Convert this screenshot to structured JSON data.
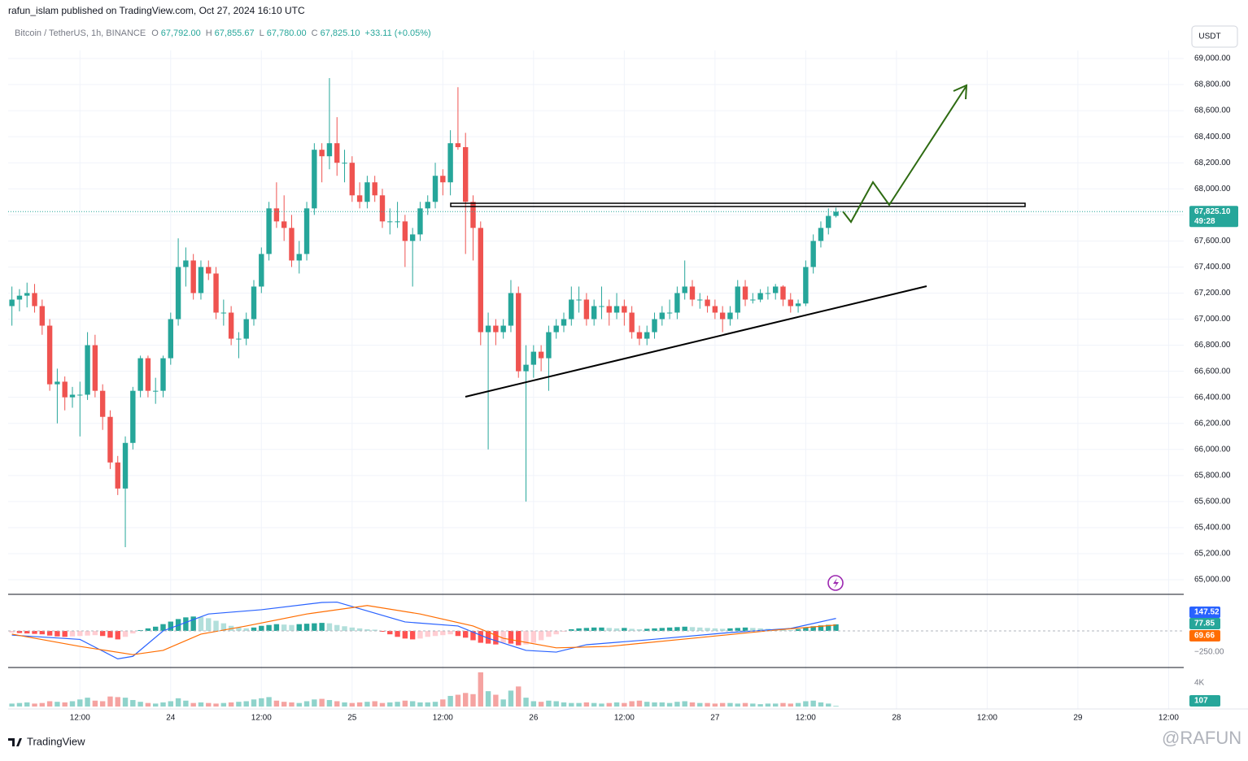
{
  "header": {
    "publisher": "rafun_islam published on TradingView.com, Oct 27, 2024 16:10 UTC",
    "symbol": "Bitcoin / TetherUS, 1h, BINANCE",
    "legend": [
      {
        "label": "O",
        "value": "67,792.00"
      },
      {
        "label": "H",
        "value": "67,855.67"
      },
      {
        "label": "L",
        "value": "67,780.00"
      },
      {
        "label": "C",
        "value": "67,825.10"
      }
    ],
    "change": "+33.11 (+0.05%)",
    "currency": "USDT",
    "brand": "TradingView",
    "watermark": "@RAFUN"
  },
  "chart_data": {
    "type": "candlestick",
    "up_color": "#26a69a",
    "down_color": "#ef5350",
    "grid": true,
    "xlim": [
      -0.5,
      155
    ],
    "xticks": [
      {
        "value": 9,
        "label": "12:00"
      },
      {
        "value": 21,
        "label": "24"
      },
      {
        "value": 33,
        "label": "12:00"
      },
      {
        "value": 45,
        "label": "25"
      },
      {
        "value": 57,
        "label": "12:00"
      },
      {
        "value": 69,
        "label": "26"
      },
      {
        "value": 81,
        "label": "12:00"
      },
      {
        "value": 93,
        "label": "27"
      },
      {
        "value": 105,
        "label": "12:00"
      },
      {
        "value": 117,
        "label": "28"
      },
      {
        "value": 129,
        "label": "12:00"
      },
      {
        "value": 141,
        "label": "29"
      },
      {
        "value": 153,
        "label": "12:00"
      }
    ],
    "ylim": [
      64888,
      69262
    ],
    "yticks": [
      {
        "value": 65000,
        "label": "65,000.00"
      },
      {
        "value": 65200,
        "label": "65,200.00"
      },
      {
        "value": 65400,
        "label": "65,400.00"
      },
      {
        "value": 65600,
        "label": "65,600.00"
      },
      {
        "value": 65800,
        "label": "65,800.00"
      },
      {
        "value": 66000,
        "label": "66,000.00"
      },
      {
        "value": 66200,
        "label": "66,200.00"
      },
      {
        "value": 66400,
        "label": "66,400.00"
      },
      {
        "value": 66600,
        "label": "66,600.00"
      },
      {
        "value": 66800,
        "label": "66,800.00"
      },
      {
        "value": 67000,
        "label": "67,000.00"
      },
      {
        "value": 67200,
        "label": "67,200.00"
      },
      {
        "value": 67400,
        "label": "67,400.00"
      },
      {
        "value": 67600,
        "label": "67,600.00"
      },
      {
        "value": 67800,
        "label": "67,800.00"
      },
      {
        "value": 68000,
        "label": "68,000.00"
      },
      {
        "value": 68200,
        "label": "68,200.00"
      },
      {
        "value": 68400,
        "label": "68,400.00"
      },
      {
        "value": 68600,
        "label": "68,600.00"
      },
      {
        "value": 68800,
        "label": "68,800.00"
      },
      {
        "value": 69000,
        "label": "69,000.00"
      }
    ],
    "last_price": {
      "value": 67825.1,
      "label": "67,825.10"
    },
    "countdown": "49:28",
    "candles": [
      [
        67100,
        67250,
        66950,
        67150
      ],
      [
        67150,
        67230,
        67060,
        67180
      ],
      [
        67180,
        67280,
        67090,
        67200
      ],
      [
        67200,
        67270,
        67050,
        67100
      ],
      [
        67100,
        67150,
        66880,
        66950
      ],
      [
        66950,
        67000,
        66450,
        66500
      ],
      [
        66500,
        66620,
        66200,
        66520
      ],
      [
        66520,
        66560,
        66300,
        66400
      ],
      [
        66400,
        66480,
        66320,
        66420
      ],
      [
        66420,
        66520,
        66100,
        66420
      ],
      [
        66420,
        66900,
        66380,
        66800
      ],
      [
        66800,
        66880,
        66400,
        66450
      ],
      [
        66450,
        66500,
        66150,
        66250
      ],
      [
        66250,
        66300,
        65850,
        65900
      ],
      [
        65900,
        65950,
        65650,
        65700
      ],
      [
        65700,
        66100,
        65250,
        66050
      ],
      [
        66050,
        66480,
        66000,
        66450
      ],
      [
        66450,
        66720,
        66400,
        66700
      ],
      [
        66700,
        66720,
        66400,
        66450
      ],
      [
        66450,
        66550,
        66350,
        66450
      ],
      [
        66450,
        66720,
        66400,
        66700
      ],
      [
        66700,
        67050,
        66650,
        67000
      ],
      [
        67000,
        67620,
        66950,
        67400
      ],
      [
        67400,
        67550,
        67250,
        67450
      ],
      [
        67450,
        67500,
        67150,
        67200
      ],
      [
        67200,
        67450,
        67150,
        67400
      ],
      [
        67400,
        67450,
        67300,
        67350
      ],
      [
        67350,
        67400,
        67000,
        67050
      ],
      [
        67050,
        67150,
        66950,
        67050
      ],
      [
        67050,
        67100,
        66800,
        66850
      ],
      [
        66850,
        66900,
        66700,
        66850
      ],
      [
        66850,
        67050,
        66800,
        67000
      ],
      [
        67000,
        67300,
        66950,
        67250
      ],
      [
        67250,
        67550,
        67200,
        67500
      ],
      [
        67500,
        67900,
        67450,
        67850
      ],
      [
        67850,
        68050,
        67700,
        67750
      ],
      [
        67750,
        67950,
        67600,
        67700
      ],
      [
        67700,
        67800,
        67400,
        67450
      ],
      [
        67450,
        67600,
        67350,
        67500
      ],
      [
        67500,
        67900,
        67450,
        67850
      ],
      [
        67850,
        68350,
        67800,
        68300
      ],
      [
        68300,
        68350,
        68050,
        68250
      ],
      [
        68250,
        68850,
        68150,
        68350
      ],
      [
        68350,
        68550,
        68100,
        68200
      ],
      [
        68200,
        68300,
        68050,
        68200
      ],
      [
        68200,
        68250,
        67900,
        67950
      ],
      [
        67950,
        68050,
        67850,
        67900
      ],
      [
        67900,
        68100,
        67850,
        68050
      ],
      [
        68050,
        68100,
        67900,
        67950
      ],
      [
        67950,
        68000,
        67700,
        67750
      ],
      [
        67750,
        67850,
        67650,
        67750
      ],
      [
        67750,
        67900,
        67700,
        67750
      ],
      [
        67750,
        67800,
        67400,
        67600
      ],
      [
        67600,
        67700,
        67250,
        67650
      ],
      [
        67650,
        67900,
        67600,
        67850
      ],
      [
        67850,
        67950,
        67800,
        67900
      ],
      [
        67900,
        68200,
        67850,
        68100
      ],
      [
        68100,
        68150,
        67950,
        68050
      ],
      [
        68050,
        68450,
        67950,
        68350
      ],
      [
        68350,
        68780,
        68300,
        68320
      ],
      [
        68320,
        68430,
        67500,
        67900
      ],
      [
        67900,
        67950,
        67450,
        67700
      ],
      [
        67700,
        67750,
        66800,
        66900
      ],
      [
        66900,
        67050,
        66000,
        66950
      ],
      [
        66950,
        67000,
        66800,
        66900
      ],
      [
        66900,
        67000,
        66850,
        66950
      ],
      [
        66950,
        67300,
        66900,
        67200
      ],
      [
        67200,
        67250,
        66550,
        66600
      ],
      [
        66600,
        66800,
        65600,
        66650
      ],
      [
        66650,
        66800,
        66550,
        66750
      ],
      [
        66750,
        66800,
        66600,
        66700
      ],
      [
        66700,
        66950,
        66450,
        66900
      ],
      [
        66900,
        67000,
        66850,
        66950
      ],
      [
        66950,
        67050,
        66900,
        67000
      ],
      [
        67000,
        67250,
        66950,
        67150
      ],
      [
        67150,
        67250,
        67050,
        67150
      ],
      [
        67150,
        67200,
        66950,
        67000
      ],
      [
        67000,
        67150,
        66950,
        67100
      ],
      [
        67100,
        67250,
        67000,
        67100
      ],
      [
        67100,
        67150,
        66950,
        67050
      ],
      [
        67050,
        67200,
        67000,
        67100
      ],
      [
        67100,
        67150,
        66950,
        67050
      ],
      [
        67050,
        67100,
        66850,
        66900
      ],
      [
        66900,
        66950,
        66800,
        66850
      ],
      [
        66850,
        66950,
        66800,
        66900
      ],
      [
        66900,
        67050,
        66850,
        67000
      ],
      [
        67000,
        67100,
        66950,
        67050
      ],
      [
        67050,
        67150,
        67000,
        67050
      ],
      [
        67050,
        67250,
        67000,
        67200
      ],
      [
        67200,
        67450,
        67150,
        67250
      ],
      [
        67250,
        67300,
        67100,
        67150
      ],
      [
        67150,
        67200,
        67080,
        67150
      ],
      [
        67150,
        67180,
        67050,
        67100
      ],
      [
        67100,
        67150,
        67000,
        67050
      ],
      [
        67050,
        67100,
        66900,
        67000
      ],
      [
        67000,
        67100,
        66950,
        67050
      ],
      [
        67050,
        67300,
        67000,
        67250
      ],
      [
        67250,
        67300,
        67100,
        67150
      ],
      [
        67150,
        67200,
        67120,
        67150
      ],
      [
        67150,
        67230,
        67130,
        67200
      ],
      [
        67200,
        67250,
        67150,
        67200
      ],
      [
        67200,
        67270,
        67150,
        67250
      ],
      [
        67250,
        67260,
        67100,
        67150
      ],
      [
        67150,
        67200,
        67050,
        67100
      ],
      [
        67100,
        67150,
        67050,
        67120
      ],
      [
        67120,
        67450,
        67100,
        67400
      ],
      [
        67400,
        67650,
        67350,
        67600
      ],
      [
        67600,
        67750,
        67550,
        67700
      ],
      [
        67700,
        67850,
        67650,
        67792
      ],
      [
        67792,
        67855.67,
        67780,
        67825.1
      ]
    ],
    "macd": {
      "ylim": [
        -432,
        432
      ],
      "yticks": [
        {
          "value": -250,
          "label": "−250.00"
        }
      ],
      "histogram": [
        -20,
        -25,
        -30,
        -35,
        -40,
        -55,
        -65,
        -70,
        -65,
        -60,
        -55,
        -50,
        -60,
        -80,
        -100,
        -70,
        -30,
        10,
        30,
        50,
        80,
        110,
        140,
        160,
        170,
        165,
        150,
        120,
        90,
        60,
        40,
        30,
        40,
        60,
        70,
        80,
        75,
        70,
        80,
        85,
        90,
        95,
        90,
        70,
        55,
        40,
        30,
        20,
        15,
        -10,
        -40,
        -70,
        -90,
        -100,
        -90,
        -70,
        -60,
        -50,
        -40,
        -60,
        -80,
        -110,
        -140,
        -150,
        -160,
        -140,
        -150,
        -170,
        -160,
        -140,
        -110,
        -70,
        -40,
        -10,
        20,
        30,
        35,
        40,
        40,
        35,
        30,
        35,
        25,
        20,
        25,
        30,
        35,
        40,
        45,
        50,
        45,
        40,
        35,
        30,
        25,
        30,
        35,
        40,
        35,
        30,
        25,
        20,
        15,
        10,
        20,
        40,
        55,
        65,
        72,
        77.85
      ],
      "hist_colors": [
        "#26a69a",
        "#b2dfdb",
        "#ff5252",
        "#ffcdd2"
      ],
      "series": [
        {
          "color": "#2962ff",
          "x": [
            0,
            9,
            14,
            16,
            20,
            26,
            33,
            41,
            43,
            52,
            59,
            63,
            68,
            72,
            76,
            84,
            95,
            103,
            109
          ],
          "values": [
            -50,
            -100,
            -330,
            -300,
            0,
            200,
            250,
            336,
            340,
            106,
            58,
            -87,
            -230,
            -250,
            -163,
            -106,
            -19,
            29,
            147.52
          ]
        },
        {
          "color": "#ff6d00",
          "x": [
            0,
            9,
            16,
            20,
            25,
            31,
            39,
            47,
            54,
            61,
            65,
            72,
            79,
            90,
            101,
            109
          ],
          "values": [
            -38,
            -183,
            -280,
            -230,
            -38,
            58,
            200,
            300,
            200,
            58,
            -87,
            -200,
            -183,
            -87,
            10,
            69.66
          ]
        }
      ]
    },
    "volume": {
      "ylim": [
        0,
        6480
      ],
      "yticks": [
        {
          "value": 4000,
          "label": "4K"
        }
      ],
      "up_color": "#8fd3cb",
      "down_color": "#f5a3a1",
      "values": [
        500,
        600,
        700,
        500,
        600,
        900,
        800,
        700,
        900,
        1200,
        1500,
        1000,
        900,
        1700,
        1600,
        1500,
        1100,
        800,
        600,
        500,
        700,
        900,
        1400,
        1000,
        600,
        700,
        600,
        500,
        600,
        700,
        800,
        900,
        1200,
        1400,
        1600,
        1000,
        800,
        700,
        600,
        900,
        1200,
        1300,
        1100,
        900,
        700,
        600,
        700,
        800,
        900,
        600,
        700,
        800,
        1000,
        900,
        700,
        700,
        800,
        1200,
        1800,
        2000,
        2300,
        2100,
        5800,
        2600,
        2000,
        1200,
        2700,
        3400,
        1500,
        900,
        800,
        1000,
        900,
        700,
        600,
        600,
        700,
        600,
        500,
        600,
        700,
        600,
        900,
        1000,
        800,
        700,
        700,
        600,
        800,
        900,
        700,
        600,
        600,
        500,
        600,
        600,
        500,
        600,
        500,
        400,
        500,
        500,
        600,
        500,
        600,
        900,
        1000,
        700,
        500,
        107
      ]
    }
  }
}
